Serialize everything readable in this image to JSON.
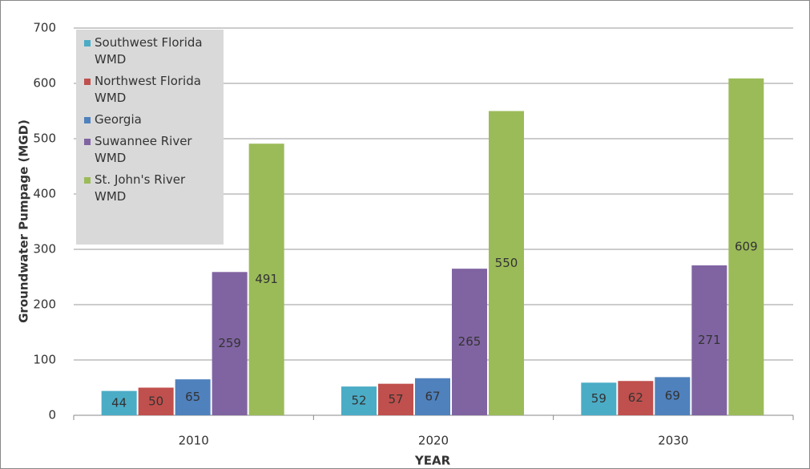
{
  "chart_data": {
    "type": "bar",
    "categories": [
      "2010",
      "2020",
      "2030"
    ],
    "series": [
      {
        "name": "Southwest Florida WMD",
        "color": "#4bacc6",
        "values": [
          44,
          52,
          59
        ]
      },
      {
        "name": "Northwest Florida WMD",
        "color": "#c0504d",
        "values": [
          50,
          57,
          62
        ]
      },
      {
        "name": "Georgia",
        "color": "#4f81bd",
        "values": [
          65,
          67,
          69
        ]
      },
      {
        "name": "Suwannee River WMD",
        "color": "#8064a2",
        "values": [
          259,
          265,
          271
        ]
      },
      {
        "name": "St. John's River WMD",
        "color": "#9bbb59",
        "values": [
          491,
          550,
          609
        ]
      }
    ],
    "ylim": [
      0,
      700
    ],
    "yticks": [
      0,
      100,
      200,
      300,
      400,
      500,
      600,
      700
    ],
    "ylabel": "Groundwater Pumpage (MGD)",
    "xlabel": "YEAR",
    "grid": true
  }
}
